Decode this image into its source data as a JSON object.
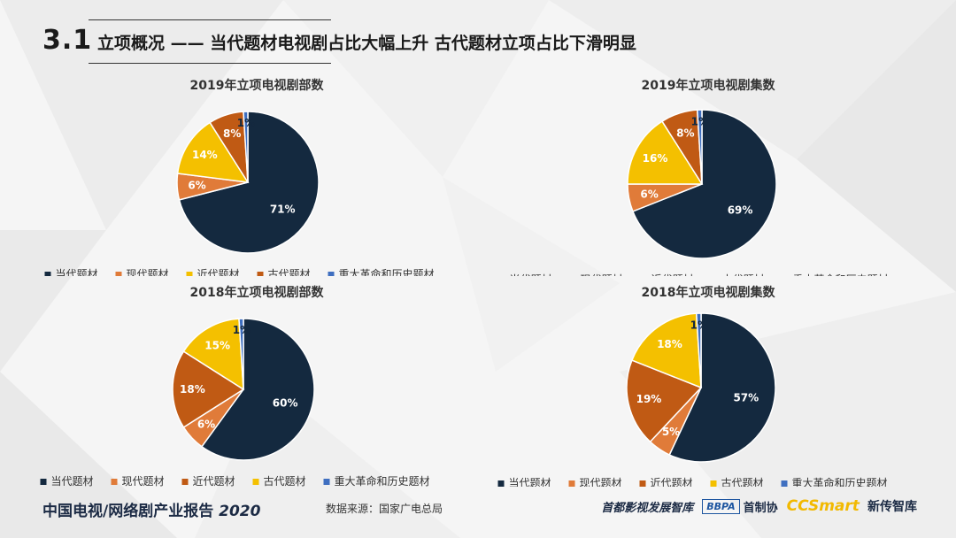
{
  "header": {
    "section_number": "3.1",
    "title": "立项概况 —— 当代题材电视剧占比大幅上升  古代题材立项占比下滑明显"
  },
  "colors": {
    "navy": "#14293f",
    "orange": "#e07b39",
    "yellow": "#f4c000",
    "rust": "#c05a14",
    "blue": "#3f6fc0"
  },
  "chart_data": [
    {
      "type": "pie",
      "title": "2019年立项电视剧部数",
      "slices": [
        {
          "label": "当代题材",
          "value": 71,
          "pct_label": "71%",
          "color": "#14293f"
        },
        {
          "label": "现代题材",
          "value": 6,
          "pct_label": "6%",
          "color": "#e07b39"
        },
        {
          "label": "近代题材",
          "value": 14,
          "pct_label": "14%",
          "color": "#f4c000"
        },
        {
          "label": "古代题材",
          "value": 8,
          "pct_label": "8%",
          "color": "#c05a14"
        },
        {
          "label": "重大革命和历史题材",
          "value": 1,
          "pct_label": "1%",
          "color": "#3f6fc0"
        }
      ],
      "legend": [
        "当代题材",
        "现代题材",
        "近代题材",
        "古代题材",
        "重大革命和历史题材"
      ],
      "legend_colors": [
        "#14293f",
        "#e07b39",
        "#f4c000",
        "#c05a14",
        "#3f6fc0"
      ]
    },
    {
      "type": "pie",
      "title": "2019年立项电视剧集数",
      "slices": [
        {
          "label": "当代题材",
          "value": 69,
          "pct_label": "69%",
          "color": "#14293f"
        },
        {
          "label": "现代题材",
          "value": 6,
          "pct_label": "6%",
          "color": "#e07b39"
        },
        {
          "label": "近代题材",
          "value": 16,
          "pct_label": "16%",
          "color": "#f4c000"
        },
        {
          "label": "古代题材",
          "value": 8,
          "pct_label": "8%",
          "color": "#c05a14"
        },
        {
          "label": "重大革命和历史题材",
          "value": 1,
          "pct_label": "1%",
          "color": "#3f6fc0"
        }
      ],
      "legend": [
        "当代题材",
        "现代题材",
        "近代题材",
        "古代题材",
        "重大革命和历史题材"
      ],
      "legend_colors": [
        "#14293f",
        "#e07b39",
        "#f4c000",
        "#c05a14",
        "#3f6fc0"
      ]
    },
    {
      "type": "pie",
      "title": "2018年立项电视剧部数",
      "slices": [
        {
          "label": "当代题材",
          "value": 60,
          "pct_label": "60%",
          "color": "#14293f"
        },
        {
          "label": "现代题材",
          "value": 6,
          "pct_label": "6%",
          "color": "#e07b39"
        },
        {
          "label": "近代题材",
          "value": 18,
          "pct_label": "18%",
          "color": "#c05a14"
        },
        {
          "label": "古代题材",
          "value": 15,
          "pct_label": "15%",
          "color": "#f4c000"
        },
        {
          "label": "重大革命和历史题材",
          "value": 1,
          "pct_label": "1%",
          "color": "#3f6fc0"
        }
      ],
      "legend": [
        "当代题材",
        "现代题材",
        "近代题材",
        "古代题材",
        "重大革命和历史题材"
      ],
      "legend_colors": [
        "#14293f",
        "#e07b39",
        "#c05a14",
        "#f4c000",
        "#3f6fc0"
      ]
    },
    {
      "type": "pie",
      "title": "2018年立项电视剧集数",
      "slices": [
        {
          "label": "当代题材",
          "value": 57,
          "pct_label": "57%",
          "color": "#14293f"
        },
        {
          "label": "现代题材",
          "value": 5,
          "pct_label": "5%",
          "color": "#e07b39"
        },
        {
          "label": "近代题材",
          "value": 19,
          "pct_label": "19%",
          "color": "#c05a14"
        },
        {
          "label": "古代题材",
          "value": 18,
          "pct_label": "18%",
          "color": "#f4c000"
        },
        {
          "label": "重大革命和历史题材",
          "value": 1,
          "pct_label": "1%",
          "color": "#3f6fc0"
        }
      ],
      "legend": [
        "当代题材",
        "现代题材",
        "近代题材",
        "古代题材",
        "重大革命和历史题材"
      ],
      "legend_colors": [
        "#14293f",
        "#e07b39",
        "#c05a14",
        "#f4c000",
        "#3f6fc0"
      ]
    }
  ],
  "footer": {
    "report_title": "中国电视/网络剧产业报告",
    "report_year": "2020",
    "source": "数据来源：国家广电总局",
    "logo1": "首都影视发展智库",
    "logo2_box": "BBPA",
    "logo2_text": "首制协",
    "logo3_brand": "CCSmart",
    "logo3_text": "新传智库"
  }
}
